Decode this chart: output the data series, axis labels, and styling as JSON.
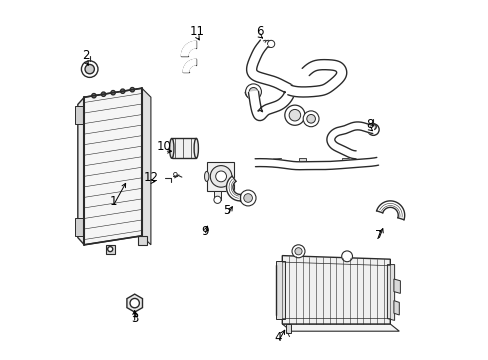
{
  "bg_color": "#ffffff",
  "line_color": "#2a2a2a",
  "label_color": "#000000",
  "fig_width": 4.89,
  "fig_height": 3.6,
  "dpi": 100,
  "label_defs": {
    "1": [
      0.135,
      0.44,
      0.175,
      0.5
    ],
    "2": [
      0.058,
      0.845,
      0.072,
      0.81
    ],
    "3": [
      0.195,
      0.115,
      0.195,
      0.148
    ],
    "4": [
      0.593,
      0.062,
      0.617,
      0.092
    ],
    "5": [
      0.452,
      0.415,
      0.472,
      0.435
    ],
    "6": [
      0.543,
      0.912,
      0.558,
      0.888
    ],
    "7": [
      0.872,
      0.345,
      0.888,
      0.375
    ],
    "8": [
      0.848,
      0.655,
      0.858,
      0.635
    ],
    "9": [
      0.39,
      0.358,
      0.4,
      0.382
    ],
    "10": [
      0.278,
      0.592,
      0.308,
      0.58
    ],
    "11": [
      0.368,
      0.912,
      0.38,
      0.88
    ],
    "12": [
      0.24,
      0.508,
      0.262,
      0.496
    ]
  }
}
